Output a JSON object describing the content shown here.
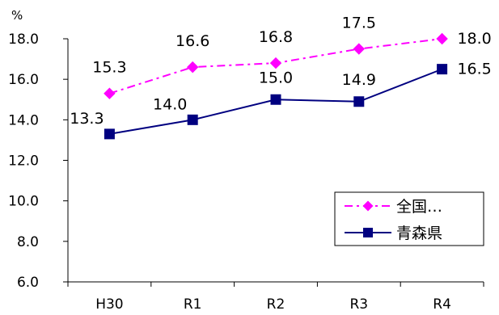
{
  "chart_data": {
    "type": "line",
    "categories": [
      "H30",
      "R1",
      "R2",
      "R3",
      "R4"
    ],
    "unit": "%",
    "ylim": [
      6.0,
      18.0
    ],
    "yticks": [
      "6.0",
      "8.0",
      "10.0",
      "12.0",
      "14.0",
      "16.0",
      "18.0"
    ],
    "grid": false,
    "legend_position": "bottom-right",
    "series": [
      {
        "name": "全国…",
        "values": [
          15.3,
          16.6,
          16.8,
          17.5,
          18.0
        ],
        "labels": [
          "15.3",
          "16.6",
          "16.8",
          "17.5",
          "18.0"
        ],
        "color": "#FF00FF",
        "line_style": "dash-dot",
        "marker": "diamond"
      },
      {
        "name": "青森県",
        "values": [
          13.3,
          14.0,
          15.0,
          14.9,
          16.5
        ],
        "labels": [
          "13.3",
          "14.0",
          "15.0",
          "14.9",
          "16.5"
        ],
        "color": "#000080",
        "line_style": "solid",
        "marker": "square"
      }
    ]
  }
}
